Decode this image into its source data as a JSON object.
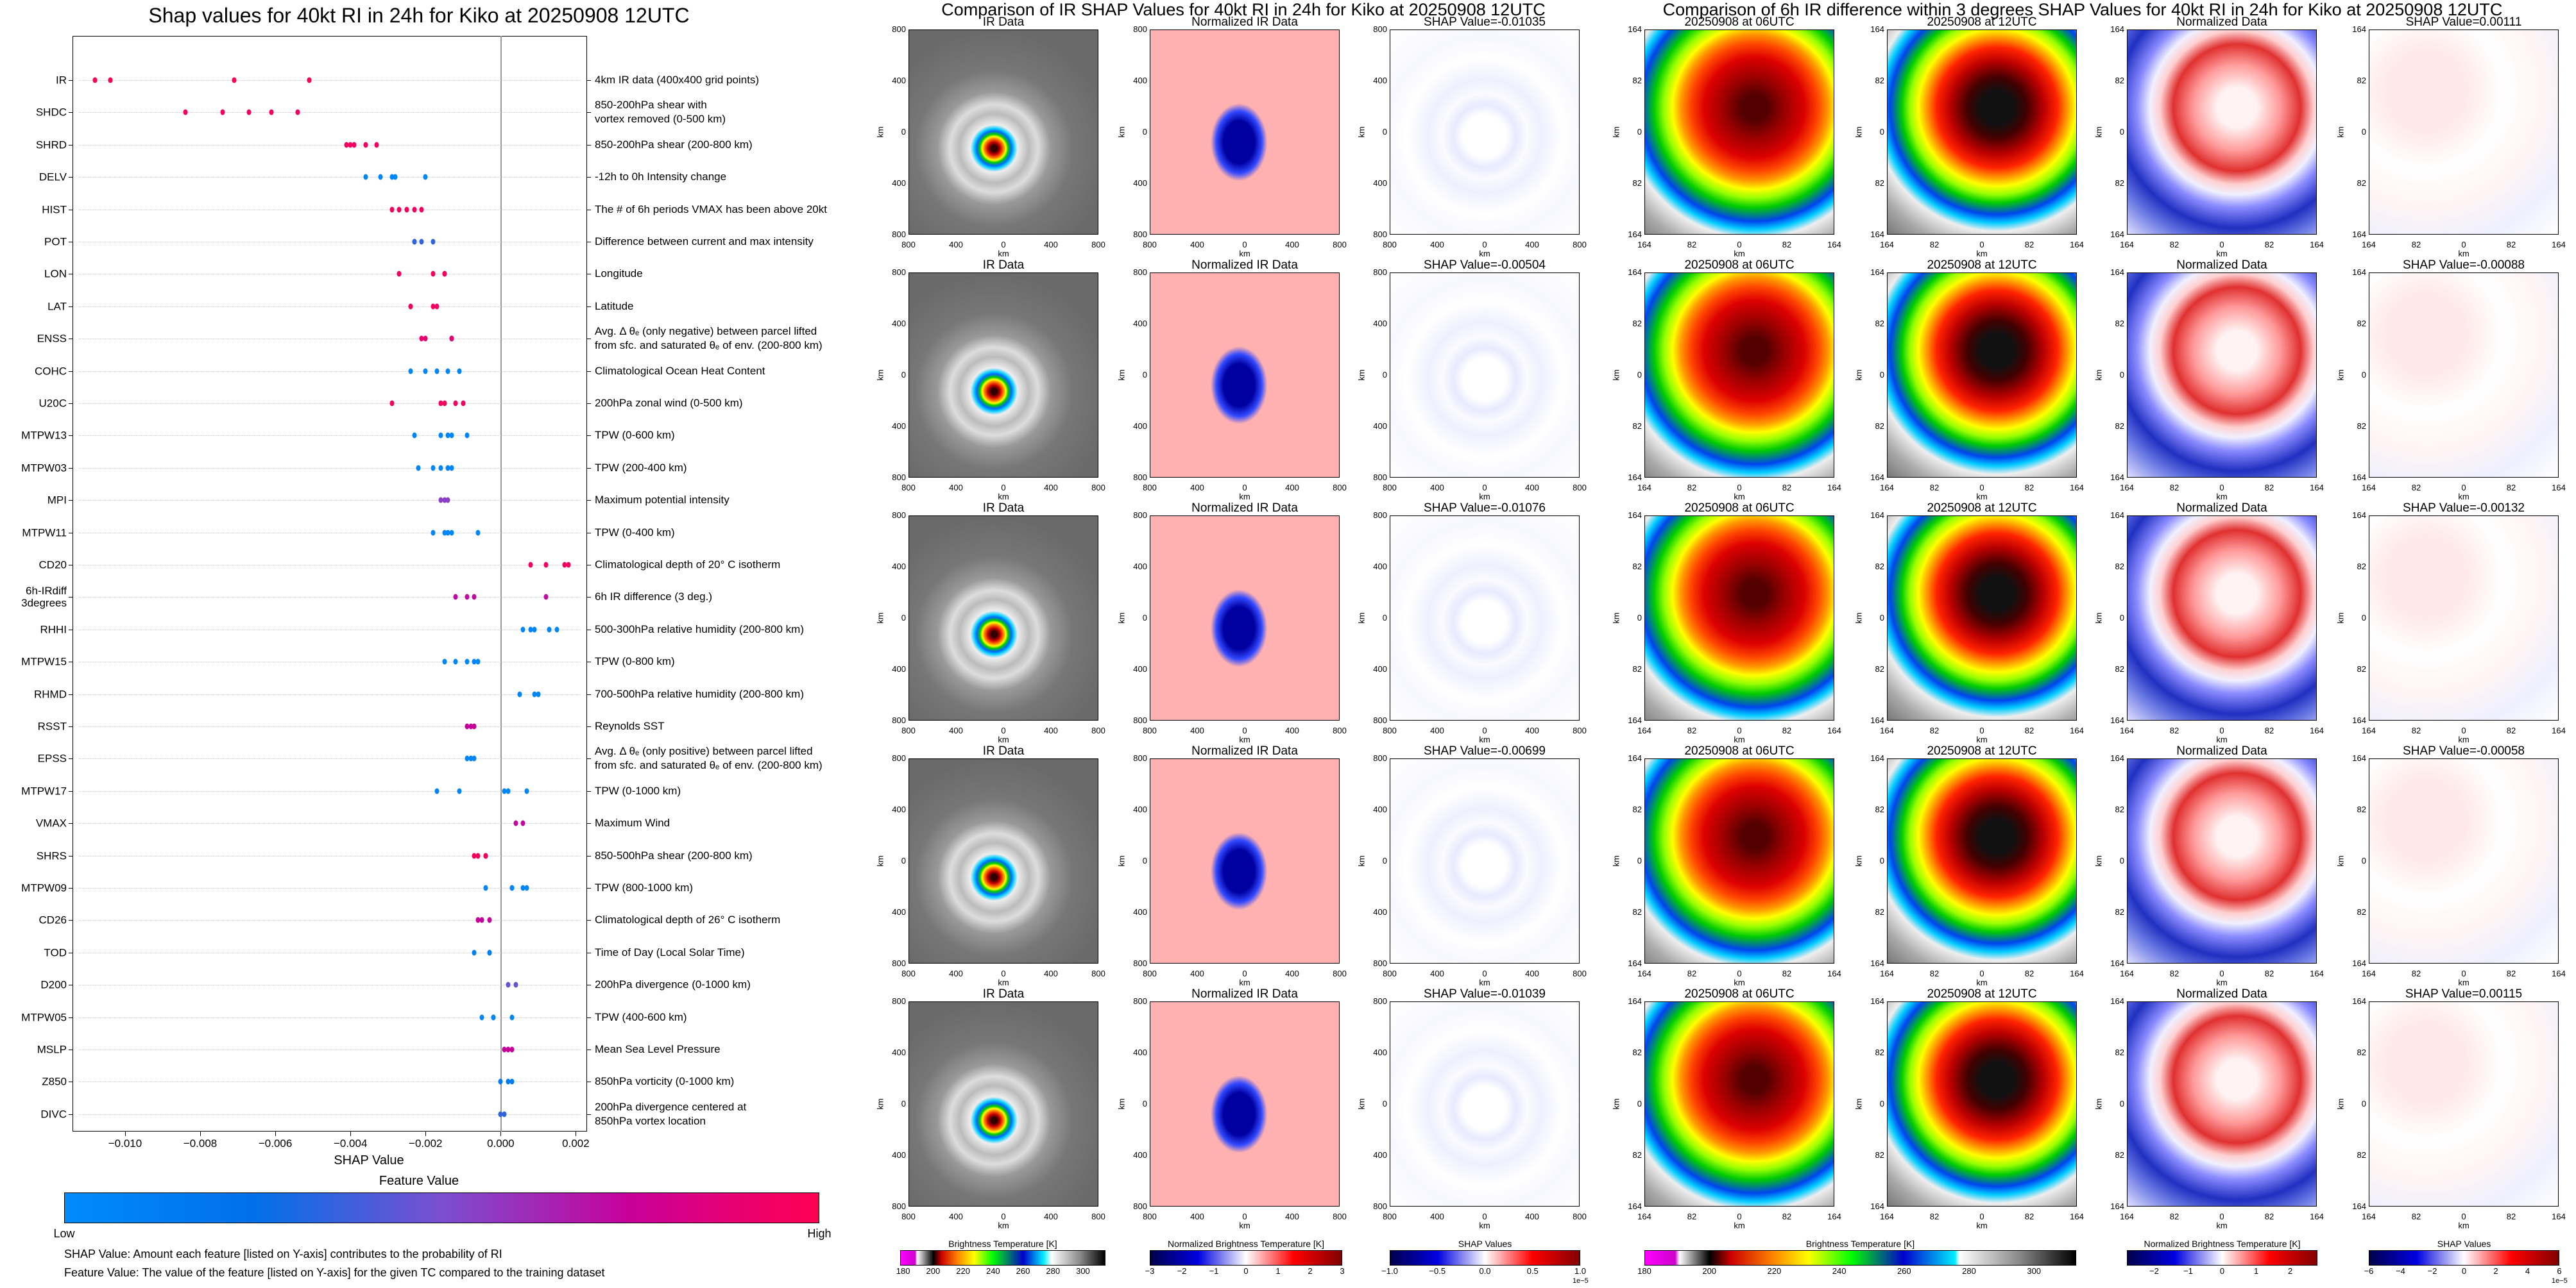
{
  "left": {
    "title": "Shap values for 40kt RI in 24h for Kiko at 20250908 12UTC",
    "chart_data": {
      "type": "scatter",
      "title": "Shap values for 40kt RI in 24h for Kiko at 20250908 12UTC",
      "xlabel": "SHAP Value",
      "xlim": [
        -0.0114,
        0.0023
      ],
      "xticks": [
        -0.01,
        -0.008,
        -0.006,
        -0.004,
        -0.002,
        0.0,
        0.002
      ],
      "xtick_labels": [
        "−0.010",
        "−0.008",
        "−0.006",
        "−0.004",
        "−0.002",
        "0.000",
        "0.002"
      ],
      "grid": "horizontal dotted",
      "features": [
        {
          "name": "IR",
          "desc": "4km IR data (400x400 grid points)",
          "shap": [
            -0.0108,
            -0.0104,
            -0.0071,
            -0.0051
          ],
          "feature_value": 1.0
        },
        {
          "name": "SHDC",
          "desc": "850-200hPa shear with\nvortex removed (0-500 km)",
          "shap": [
            -0.0084,
            -0.0074,
            -0.0067,
            -0.0061,
            -0.0054
          ],
          "feature_value": 0.95
        },
        {
          "name": "SHRD",
          "desc": "850-200hPa shear (200-800 km)",
          "shap": [
            -0.0041,
            -0.004,
            -0.0039,
            -0.0036,
            -0.0033
          ],
          "feature_value": 0.95
        },
        {
          "name": "DELV",
          "desc": "-12h to 0h Intensity change",
          "shap": [
            -0.0036,
            -0.0032,
            -0.0029,
            -0.0028,
            -0.002
          ],
          "feature_value": 0.05
        },
        {
          "name": "HIST",
          "desc": "The # of 6h periods VMAX has been above 20kt",
          "shap": [
            -0.0029,
            -0.0027,
            -0.0025,
            -0.0023,
            -0.0021
          ],
          "feature_value": 0.95
        },
        {
          "name": "POT",
          "desc": "Difference between current and max intensity",
          "shap": [
            -0.0023,
            -0.0023,
            -0.0021,
            -0.0018
          ],
          "feature_value": 0.35
        },
        {
          "name": "LON",
          "desc": "Longitude",
          "shap": [
            -0.0027,
            -0.0018,
            -0.0015,
            -0.0015
          ],
          "feature_value": 0.95
        },
        {
          "name": "LAT",
          "desc": "Latitude",
          "shap": [
            -0.0024,
            -0.0018,
            -0.0017
          ],
          "feature_value": 0.95
        },
        {
          "name": "ENSS",
          "desc": "Avg. Δ θₑ (only negative) between parcel lifted\nfrom sfc. and saturated θₑ of env. (200-800 km)",
          "shap": [
            -0.0021,
            -0.002,
            -0.0013,
            -0.0013
          ],
          "feature_value": 0.9
        },
        {
          "name": "COHC",
          "desc": "Climatological Ocean Heat Content",
          "shap": [
            -0.0024,
            -0.002,
            -0.0017,
            -0.0014,
            -0.0011
          ],
          "feature_value": 0.05
        },
        {
          "name": "U20C",
          "desc": "200hPa zonal wind (0-500 km)",
          "shap": [
            -0.0029,
            -0.0016,
            -0.0015,
            -0.0012,
            -0.001
          ],
          "feature_value": 0.95
        },
        {
          "name": "MTPW13",
          "desc": "TPW (0-600 km)",
          "shap": [
            -0.0023,
            -0.0016,
            -0.0014,
            -0.0013,
            -0.0009
          ],
          "feature_value": 0.05
        },
        {
          "name": "MTPW03",
          "desc": "TPW (200-400 km)",
          "shap": [
            -0.0022,
            -0.0018,
            -0.0016,
            -0.0014,
            -0.0013
          ],
          "feature_value": 0.05
        },
        {
          "name": "MPI",
          "desc": "Maximum potential intensity",
          "shap": [
            -0.0016,
            -0.0015,
            -0.0014
          ],
          "feature_value": 0.55
        },
        {
          "name": "MTPW11",
          "desc": "TPW (0-400 km)",
          "shap": [
            -0.0018,
            -0.0015,
            -0.0014,
            -0.0013,
            -0.0006
          ],
          "feature_value": 0.05
        },
        {
          "name": "CD20",
          "desc": "Climatological depth of 20° C isotherm",
          "shap": [
            0.0008,
            0.0012,
            0.0017,
            0.0018
          ],
          "feature_value": 0.95
        },
        {
          "name": "6h-IRdiff\n3degrees",
          "desc": "6h IR difference (3 deg.)",
          "shap": [
            -0.0012,
            -0.0009,
            -0.0007,
            0.0012
          ],
          "feature_value": 0.72
        },
        {
          "name": "RHHI",
          "desc": "500-300hPa relative humidity (200-800 km)",
          "shap": [
            0.0006,
            0.0008,
            0.0009,
            0.0013,
            0.0015
          ],
          "feature_value": 0.05
        },
        {
          "name": "MTPW15",
          "desc": "TPW (0-800 km)",
          "shap": [
            -0.0015,
            -0.0012,
            -0.0009,
            -0.0007,
            -0.0006
          ],
          "feature_value": 0.05
        },
        {
          "name": "RHMD",
          "desc": "700-500hPa relative humidity (200-800 km)",
          "shap": [
            0.0005,
            0.0009,
            0.001
          ],
          "feature_value": 0.05
        },
        {
          "name": "RSST",
          "desc": "Reynolds SST",
          "shap": [
            -0.0009,
            -0.0008,
            -0.0007
          ],
          "feature_value": 0.75
        },
        {
          "name": "EPSS",
          "desc": "Avg. Δ θₑ (only positive) between parcel lifted\nfrom sfc. and saturated θₑ of env. (200-800 km)",
          "shap": [
            -0.0009,
            -0.0008,
            -0.0007
          ],
          "feature_value": 0.05
        },
        {
          "name": "MTPW17",
          "desc": "TPW (0-1000 km)",
          "shap": [
            -0.0017,
            -0.0011,
            0.0001,
            0.0002,
            0.0007
          ],
          "feature_value": 0.05
        },
        {
          "name": "VMAX",
          "desc": "Maximum Wind",
          "shap": [
            0.0004,
            0.0006
          ],
          "feature_value": 0.72
        },
        {
          "name": "SHRS",
          "desc": "850-500hPa shear (200-800 km)",
          "shap": [
            -0.0007,
            -0.0006,
            -0.0004,
            -0.0004
          ],
          "feature_value": 0.95
        },
        {
          "name": "MTPW09",
          "desc": "TPW (800-1000 km)",
          "shap": [
            -0.0004,
            0.0003,
            0.0003,
            0.0006,
            0.0007
          ],
          "feature_value": 0.05
        },
        {
          "name": "CD26",
          "desc": "Climatological depth of 26° C isotherm",
          "shap": [
            -0.0006,
            -0.0005,
            -0.0003
          ],
          "feature_value": 0.75
        },
        {
          "name": "TOD",
          "desc": "Time of Day (Local Solar Time)",
          "shap": [
            -0.0007,
            -0.0003,
            -0.0003
          ],
          "feature_value": 0.1
        },
        {
          "name": "D200",
          "desc": "200hPa divergence (0-1000 km)",
          "shap": [
            0.0002,
            0.0004
          ],
          "feature_value": 0.45
        },
        {
          "name": "MTPW05",
          "desc": "TPW (400-600 km)",
          "shap": [
            -0.0005,
            -0.0002,
            -0.0002,
            0.0003
          ],
          "feature_value": 0.05
        },
        {
          "name": "MSLP",
          "desc": "Mean Sea Level Pressure",
          "shap": [
            0.0001,
            0.0002,
            0.0003
          ],
          "feature_value": 0.75
        },
        {
          "name": "Z850",
          "desc": "850hPa vorticity (0-1000 km)",
          "shap": [
            0.0,
            0.0002,
            0.0003
          ],
          "feature_value": 0.15
        },
        {
          "name": "DIVC",
          "desc": "200hPa divergence centered at\n850hPa vortex location",
          "shap": [
            0.0,
            0.0001
          ],
          "feature_value": 0.35
        }
      ]
    },
    "colorbar": {
      "title": "Feature Value",
      "low": "Low",
      "high": "High",
      "colors": [
        "#008bfb",
        "#0070e8",
        "#7a4fd0",
        "#c8009a",
        "#ff0052"
      ]
    },
    "notes": [
      "SHAP Value: Amount each feature [listed on Y-axis] contributes to the probability of RI",
      "Feature Value: The value of the feature [listed on Y-axis] for the given TC compared to the training dataset"
    ]
  },
  "middle": {
    "title": "Comparison of IR SHAP Values for 40kt RI in 24h for Kiko at 20250908 12UTC",
    "ticks": [
      "800",
      "400",
      "0",
      "400",
      "800"
    ],
    "axis_label": "km"
  },
  "right": {
    "title": "Comparison of 6h IR difference within 3 degrees SHAP Values for 40kt RI in 24h for Kiko at 20250908 12UTC",
    "ticks": [
      "164",
      "82",
      "0",
      "82",
      "164"
    ],
    "axis_label": "km"
  },
  "column_titles": [
    "IR Data",
    "Normalized IR Data",
    null,
    "20250908 at 06UTC",
    "20250908 at 12UTC",
    "Normalized Data",
    null
  ],
  "rows": [
    {
      "shap_ir": "SHAP Value=-0.01035",
      "shap_diff": "SHAP Value=0.00111"
    },
    {
      "shap_ir": "SHAP Value=-0.00504",
      "shap_diff": "SHAP Value=-0.00088"
    },
    {
      "shap_ir": "SHAP Value=-0.01076",
      "shap_diff": "SHAP Value=-0.00132"
    },
    {
      "shap_ir": "SHAP Value=-0.00699",
      "shap_diff": "SHAP Value=-0.00058"
    },
    {
      "shap_ir": "SHAP Value=-0.01039",
      "shap_diff": "SHAP Value=0.00115"
    }
  ],
  "colorbars": [
    {
      "title": "Brightness Temperature [K]",
      "ticks": [
        "180",
        "200",
        "220",
        "240",
        "260",
        "280",
        "300"
      ],
      "tick_values": [
        180,
        200,
        220,
        240,
        260,
        280,
        300
      ],
      "range": [
        178,
        315
      ],
      "offset": ""
    },
    {
      "title": "Normalized Brightness Temperature [K]",
      "ticks": [
        "−3",
        "−2",
        "−1",
        "0",
        "1",
        "2",
        "3"
      ],
      "tick_values": [
        -3,
        -2,
        -1,
        0,
        1,
        2,
        3
      ],
      "range": [
        -3,
        3
      ],
      "offset": ""
    },
    {
      "title": "SHAP Values",
      "ticks": [
        "−1.0",
        "−0.5",
        "0.0",
        "0.5",
        "1.0"
      ],
      "tick_values": [
        -1,
        -0.5,
        0,
        0.5,
        1
      ],
      "range": [
        -1,
        1
      ],
      "offset": "1e−5"
    },
    {
      "title": "Brightness Temperature [K]",
      "ticks": [
        "180",
        "200",
        "220",
        "240",
        "260",
        "280",
        "300"
      ],
      "tick_values": [
        180,
        200,
        220,
        240,
        260,
        280,
        300
      ],
      "range": [
        180,
        313
      ],
      "offset": ""
    },
    {
      "title": "Normalized Brightness Temperature [K]",
      "ticks": [
        "−2",
        "−1",
        "0",
        "1",
        "2"
      ],
      "tick_values": [
        -2,
        -1,
        0,
        1,
        2
      ],
      "range": [
        -2.8,
        2.8
      ],
      "offset": ""
    },
    {
      "title": "SHAP Values",
      "ticks": [
        "−6",
        "−4",
        "−2",
        "0",
        "2",
        "4",
        "6"
      ],
      "tick_values": [
        -6,
        -4,
        -2,
        0,
        2,
        4,
        6
      ],
      "range": [
        -6,
        6
      ],
      "offset": "1e−5"
    }
  ]
}
